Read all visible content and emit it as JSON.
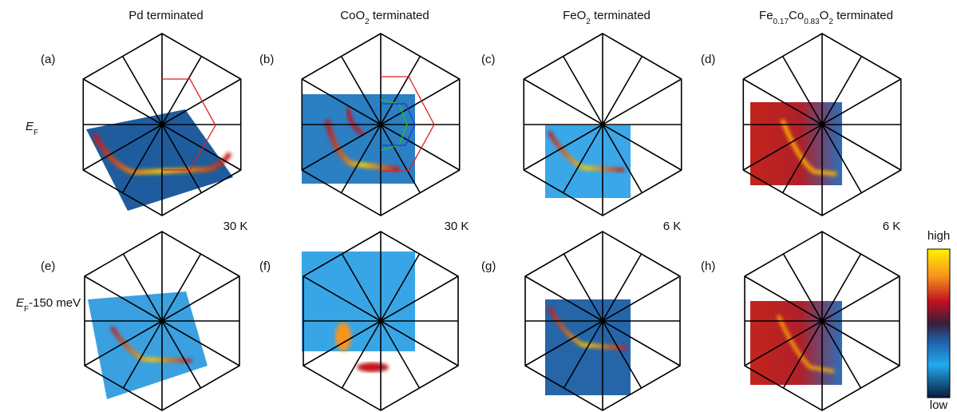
{
  "columns": [
    {
      "title": [
        {
          "text": "Pd terminated"
        }
      ]
    },
    {
      "title": [
        {
          "text": "CoO"
        },
        {
          "sub": "2"
        },
        {
          "text": " terminated"
        }
      ]
    },
    {
      "title": [
        {
          "text": "FeO"
        },
        {
          "sub": "2"
        },
        {
          "text": " terminated"
        }
      ]
    },
    {
      "title": [
        {
          "text": "Fe"
        },
        {
          "sub": "0.17"
        },
        {
          "text": "Co"
        },
        {
          "sub": "0.83"
        },
        {
          "text": "O"
        },
        {
          "sub": "2"
        },
        {
          "text": " terminated"
        }
      ]
    }
  ],
  "rows": [
    {
      "label": [
        {
          "italic": "E"
        },
        {
          "sub": "F"
        }
      ]
    },
    {
      "label": [
        {
          "italic": "E"
        },
        {
          "sub": "F"
        },
        {
          "text": "-150 meV"
        }
      ]
    }
  ],
  "panels": [
    "(a)",
    "(b)",
    "(c)",
    "(d)",
    "(e)",
    "(f)",
    "(g)",
    "(h)"
  ],
  "temperatures": [
    "30 K",
    "30 K",
    "6 K",
    "6 K"
  ],
  "colorbar": {
    "high": "high",
    "low": "low"
  }
}
